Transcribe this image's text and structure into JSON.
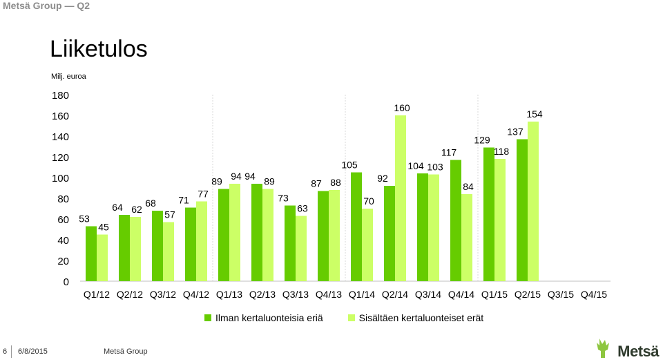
{
  "header": {
    "title": "Metsä Group — Q2"
  },
  "slide": {
    "title": "Liiketulos",
    "unit": "Milj. euroa"
  },
  "colors": {
    "series1": "#66cc00",
    "series2": "#ccff66",
    "gridline": "#d9d9d9",
    "axis": "#bfbfbf"
  },
  "chart_data": {
    "type": "bar",
    "categories": [
      "Q1/12",
      "Q2/12",
      "Q3/12",
      "Q4/12",
      "Q1/13",
      "Q2/13",
      "Q3/13",
      "Q4/13",
      "Q1/14",
      "Q2/14",
      "Q3/14",
      "Q4/14",
      "Q1/15",
      "Q2/15",
      "Q3/15",
      "Q4/15"
    ],
    "series": [
      {
        "name": "Ilman kertaluonteisia eriä",
        "values": [
          53,
          64,
          68,
          71,
          89,
          94,
          73,
          87,
          105,
          92,
          104,
          117,
          129,
          137,
          null,
          null
        ]
      },
      {
        "name": "Sisältäen kertaluonteiset erät",
        "values": [
          45,
          62,
          57,
          77,
          94,
          89,
          63,
          88,
          70,
          160,
          103,
          84,
          118,
          154,
          null,
          null
        ]
      }
    ],
    "ylim": [
      0,
      180
    ],
    "yticks": [
      0,
      20,
      40,
      60,
      80,
      100,
      120,
      140,
      160,
      180
    ],
    "vertical_separators_after": [
      "Q4/12",
      "Q4/13",
      "Q4/14"
    ],
    "legend_position": "bottom",
    "grid": false
  },
  "footer": {
    "page": "6",
    "date": "6/8/2015",
    "company": "Metsä Group"
  },
  "logo": {
    "text": "Metsä"
  }
}
